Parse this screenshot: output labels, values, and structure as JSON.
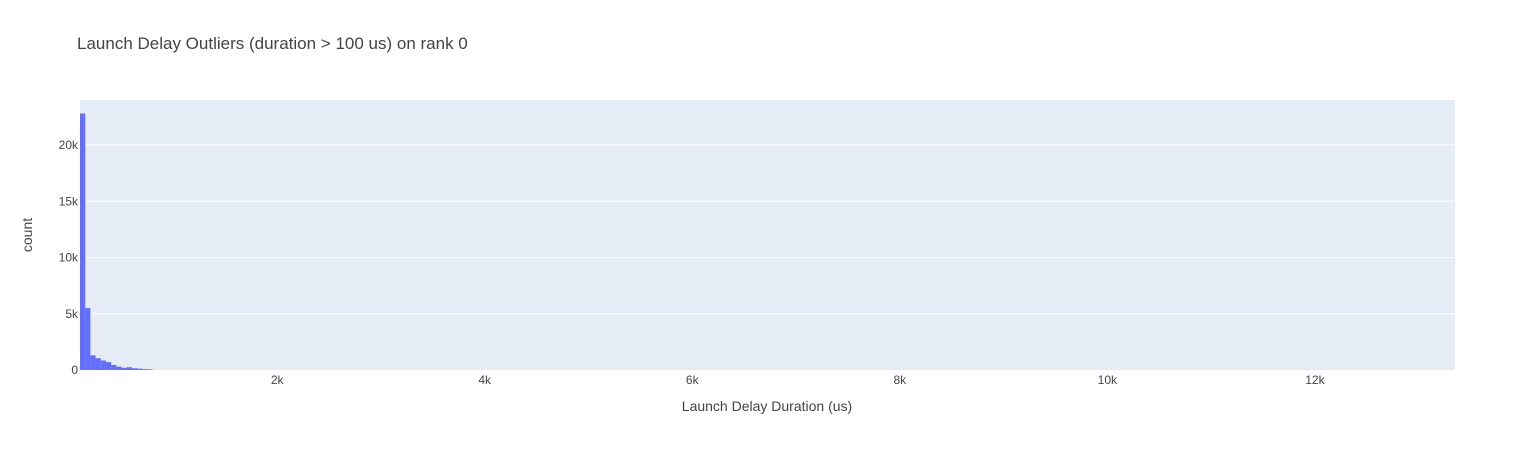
{
  "chart_data": {
    "type": "bar",
    "title": "Launch Delay Outliers (duration > 100 us) on rank 0",
    "xlabel": "Launch Delay Duration (us)",
    "ylabel": "count",
    "xlim": [
      100,
      13350
    ],
    "ylim": [
      0,
      24000
    ],
    "bin_width": 50,
    "x_ticks": [
      {
        "value": 2000,
        "label": "2k"
      },
      {
        "value": 4000,
        "label": "4k"
      },
      {
        "value": 6000,
        "label": "6k"
      },
      {
        "value": 8000,
        "label": "8k"
      },
      {
        "value": 10000,
        "label": "10k"
      },
      {
        "value": 12000,
        "label": "12k"
      }
    ],
    "y_ticks": [
      {
        "value": 0,
        "label": "0"
      },
      {
        "value": 5000,
        "label": "5k"
      },
      {
        "value": 10000,
        "label": "10k"
      },
      {
        "value": 15000,
        "label": "15k"
      },
      {
        "value": 20000,
        "label": "20k"
      }
    ],
    "bins": [
      {
        "x0": 100,
        "count": 22800
      },
      {
        "x0": 150,
        "count": 5500
      },
      {
        "x0": 200,
        "count": 1300
      },
      {
        "x0": 250,
        "count": 1050
      },
      {
        "x0": 300,
        "count": 850
      },
      {
        "x0": 350,
        "count": 700
      },
      {
        "x0": 400,
        "count": 450
      },
      {
        "x0": 450,
        "count": 300
      },
      {
        "x0": 500,
        "count": 200
      },
      {
        "x0": 550,
        "count": 250
      },
      {
        "x0": 600,
        "count": 160
      },
      {
        "x0": 650,
        "count": 120
      },
      {
        "x0": 700,
        "count": 80
      },
      {
        "x0": 750,
        "count": 60
      }
    ],
    "grid": true,
    "colors": {
      "bar": "#636efa",
      "plot_bg": "#e5ecf6",
      "grid": "#ffffff",
      "text": "#444444"
    }
  }
}
